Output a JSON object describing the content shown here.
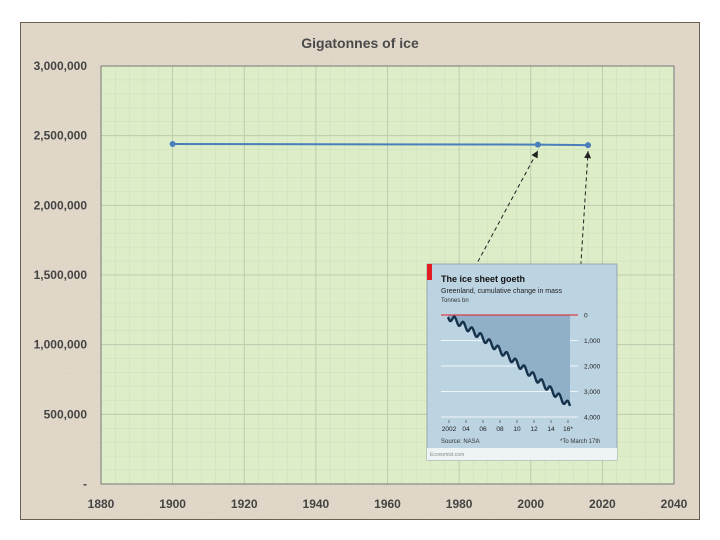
{
  "chart_data": {
    "type": "line",
    "title": "Gigatonnes of ice",
    "xlabel": "",
    "ylabel": "",
    "xlim": [
      1880,
      2040
    ],
    "ylim": [
      0,
      3000000
    ],
    "x_ticks": [
      1880,
      1900,
      1920,
      1940,
      1960,
      1980,
      2000,
      2020,
      2040
    ],
    "x_tick_labels": [
      "1880",
      "1900",
      "1920",
      "1940",
      "1960",
      "1980",
      "2000",
      "2020",
      "2040"
    ],
    "y_ticks": [
      0,
      500000,
      1000000,
      1500000,
      2000000,
      2500000,
      3000000
    ],
    "y_tick_labels": [
      "-",
      "500,000",
      "1,000,000",
      "1,500,000",
      "2,000,000",
      "2,500,000",
      "3,000,000"
    ],
    "grid": true,
    "series": [
      {
        "x": [
          1900,
          2002,
          2016
        ],
        "y": [
          2440000,
          2436000,
          2432000
        ]
      }
    ],
    "colors": {
      "line": "#4a7ebb",
      "plot_bg": "#dcedc8",
      "outer_bg": "#e8dfd0",
      "inset_bg": "#bcd3e2",
      "inset_area": "#8fb0c6",
      "inset_line": "#17324b",
      "inset_red": "#e31b23"
    }
  },
  "inset": {
    "title": "The ice sheet goeth",
    "subtitle": "Greenland, cumulative change in mass",
    "unit": "Tonnes bn",
    "type": "area",
    "x_tick_labels": [
      "2002",
      "04",
      "06",
      "08",
      "10",
      "12",
      "14",
      "16*"
    ],
    "y_tick_labels": [
      "0",
      "1,000",
      "2,000",
      "3,000",
      "4,000"
    ],
    "source": "Source: NASA",
    "footnote": "*To March 17th",
    "credit": "Economist.com"
  }
}
